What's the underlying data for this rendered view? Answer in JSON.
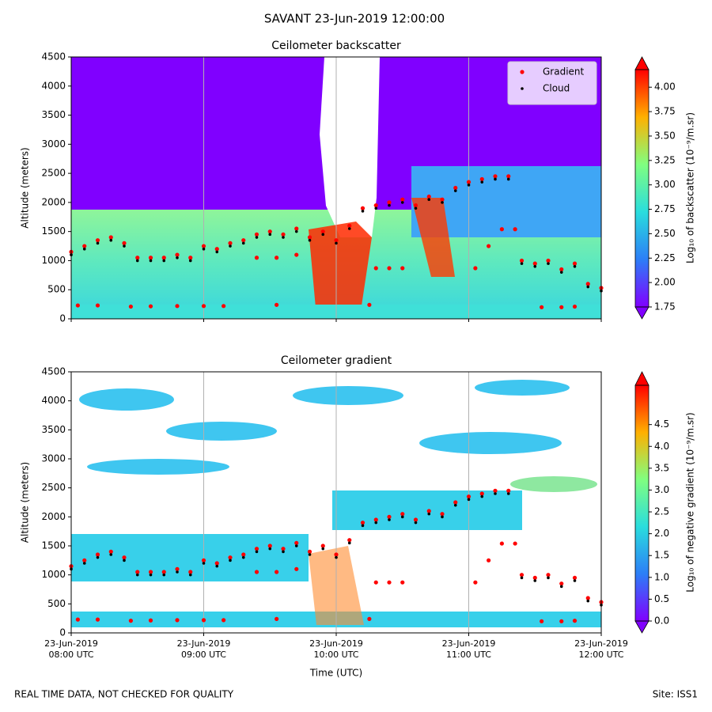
{
  "title": "SAVANT 23-Jun-2019 12:00:00",
  "footer_left": "REAL TIME DATA, NOT CHECKED FOR QUALITY",
  "footer_right": "Site: ISS1",
  "chart_data": [
    {
      "type": "scatter",
      "title": "Ceilometer backscatter",
      "ylabel": "Altitude (meters)",
      "xlim": [
        8,
        12
      ],
      "xticks": [
        8,
        9,
        10,
        11,
        12
      ],
      "ylim": [
        0,
        4500
      ],
      "yticks": [
        0,
        500,
        1000,
        1500,
        2000,
        2500,
        3000,
        3500,
        4000,
        4500
      ],
      "grid": "x",
      "legend": "upper right",
      "colorbar": {
        "label": "Log₁₀ of backscatter (10⁻⁹/m.sr)",
        "lim": [
          1.75,
          4.18
        ],
        "ticks": [
          1.75,
          {
            "value": 2,
            "label": "2.00"
          },
          2.25,
          {
            "value": 2.5,
            "label": "2.50"
          },
          2.75,
          {
            "value": 3,
            "label": "3.00"
          },
          3.25,
          {
            "value": 3.5,
            "label": "3.50"
          },
          3.75,
          {
            "value": 4,
            "label": "4.00"
          }
        ]
      },
      "series": [
        {
          "name": "Gradient",
          "color": "#ff0000",
          "x": [
            8.0,
            8.1,
            8.2,
            8.3,
            8.4,
            8.5,
            8.6,
            8.7,
            8.8,
            8.9,
            9.0,
            9.1,
            9.2,
            9.3,
            9.4,
            9.5,
            9.6,
            9.7,
            9.8,
            9.9,
            10.0,
            10.1,
            10.2,
            10.3,
            10.4,
            10.5,
            10.6,
            10.7,
            10.8,
            10.9,
            11.0,
            11.1,
            11.2,
            11.3,
            11.4,
            11.5,
            11.6,
            11.7,
            11.8,
            11.9,
            12.0,
            8.05,
            8.2,
            8.45,
            8.6,
            8.8,
            9.0,
            9.15,
            9.55,
            9.4,
            9.55,
            9.7,
            10.25,
            10.3,
            10.4,
            10.5,
            11.05,
            11.15,
            11.25,
            11.35,
            11.55,
            11.7,
            11.8
          ],
          "values": [
            1150,
            1250,
            1350,
            1400,
            1300,
            1050,
            1050,
            1050,
            1100,
            1050,
            1250,
            1200,
            1300,
            1350,
            1450,
            1500,
            1450,
            1550,
            1400,
            1500,
            1350,
            1600,
            1900,
            1950,
            2000,
            2050,
            1950,
            2100,
            2050,
            2250,
            2350,
            2400,
            2450,
            2450,
            1000,
            950,
            1000,
            850,
            950,
            600,
            530,
            230,
            230,
            210,
            215,
            220,
            220,
            220,
            240,
            1050,
            1050,
            1100,
            240,
            870,
            870,
            870,
            870,
            1250,
            1540,
            1540,
            200,
            200,
            210
          ]
        },
        {
          "name": "Cloud",
          "color": "#000000",
          "x": [
            8.0,
            8.1,
            8.2,
            8.3,
            8.4,
            8.5,
            8.6,
            8.7,
            8.8,
            8.9,
            9.0,
            9.1,
            9.2,
            9.3,
            9.4,
            9.5,
            9.6,
            9.7,
            9.8,
            9.9,
            10.0,
            10.1,
            10.2,
            10.3,
            10.4,
            10.5,
            10.6,
            10.7,
            10.8,
            10.9,
            11.0,
            11.1,
            11.2,
            11.3,
            11.4,
            11.5,
            11.6,
            11.7,
            11.8,
            11.9,
            12.0
          ],
          "values": [
            1100,
            1200,
            1300,
            1350,
            1250,
            1000,
            1000,
            1000,
            1050,
            1000,
            1200,
            1150,
            1250,
            1300,
            1400,
            1450,
            1400,
            1500,
            1350,
            1450,
            1300,
            1550,
            1850,
            1900,
            1950,
            2000,
            1900,
            2050,
            2000,
            2200,
            2300,
            2350,
            2400,
            2400,
            950,
            900,
            950,
            800,
            900,
            550,
            480
          ]
        }
      ]
    },
    {
      "type": "scatter",
      "title": "Ceilometer gradient",
      "ylabel": "Altitude (meters)",
      "xlabel": "Time (UTC)",
      "xlim": [
        8,
        12
      ],
      "xticks": [
        {
          "value": 8,
          "label": [
            "23-Jun-2019",
            "08:00 UTC"
          ]
        },
        {
          "value": 9,
          "label": [
            "23-Jun-2019",
            "09:00 UTC"
          ]
        },
        {
          "value": 10,
          "label": [
            "23-Jun-2019",
            "10:00 UTC"
          ]
        },
        {
          "value": 11,
          "label": [
            "23-Jun-2019",
            "11:00 UTC"
          ]
        },
        {
          "value": 12,
          "label": [
            "23-Jun-2019",
            "12:00 UTC"
          ]
        }
      ],
      "ylim": [
        0,
        4500
      ],
      "yticks": [
        0,
        500,
        1000,
        1500,
        2000,
        2500,
        3000,
        3500,
        4000,
        4500
      ],
      "grid": "x",
      "colorbar": {
        "label": "Log₁₀ of negative gradient (10⁻⁹/m.sr)",
        "lim": [
          0,
          5.4
        ],
        "ticks": [
          {
            "value": 0,
            "label": "0.0"
          },
          0.5,
          {
            "value": 1,
            "label": "1.0"
          },
          1.5,
          {
            "value": 2,
            "label": "2.0"
          },
          2.5,
          {
            "value": 3,
            "label": "3.0"
          },
          3.5,
          {
            "value": 4,
            "label": "4.0"
          },
          4.5
        ]
      },
      "series": [
        {
          "color": "#ff0000",
          "x": [
            8.0,
            8.1,
            8.2,
            8.3,
            8.4,
            8.5,
            8.6,
            8.7,
            8.8,
            8.9,
            9.0,
            9.1,
            9.2,
            9.3,
            9.4,
            9.5,
            9.6,
            9.7,
            9.8,
            9.9,
            10.0,
            10.1,
            10.2,
            10.3,
            10.4,
            10.5,
            10.6,
            10.7,
            10.8,
            10.9,
            11.0,
            11.1,
            11.2,
            11.3,
            11.4,
            11.5,
            11.6,
            11.7,
            11.8,
            11.9,
            12.0,
            8.05,
            8.2,
            8.45,
            8.6,
            8.8,
            9.0,
            9.15,
            9.55,
            9.4,
            9.55,
            9.7,
            10.25,
            10.3,
            10.4,
            10.5,
            11.05,
            11.15,
            11.25,
            11.35,
            11.55,
            11.7,
            11.8
          ],
          "values": [
            1150,
            1250,
            1350,
            1400,
            1300,
            1050,
            1050,
            1050,
            1100,
            1050,
            1250,
            1200,
            1300,
            1350,
            1450,
            1500,
            1450,
            1550,
            1400,
            1500,
            1350,
            1600,
            1900,
            1950,
            2000,
            2050,
            1950,
            2100,
            2050,
            2250,
            2350,
            2400,
            2450,
            2450,
            1000,
            950,
            1000,
            850,
            950,
            600,
            530,
            230,
            230,
            210,
            215,
            220,
            220,
            220,
            240,
            1050,
            1050,
            1100,
            240,
            870,
            870,
            870,
            870,
            1250,
            1540,
            1540,
            200,
            200,
            210
          ]
        },
        {
          "color": "#000000",
          "x": [
            8.0,
            8.1,
            8.2,
            8.3,
            8.4,
            8.5,
            8.6,
            8.7,
            8.8,
            8.9,
            9.0,
            9.1,
            9.2,
            9.3,
            9.4,
            9.5,
            9.6,
            9.7,
            9.8,
            9.9,
            10.0,
            10.1,
            10.2,
            10.3,
            10.4,
            10.5,
            10.6,
            10.7,
            10.8,
            10.9,
            11.0,
            11.1,
            11.2,
            11.3,
            11.4,
            11.5,
            11.6,
            11.7,
            11.8,
            11.9,
            12.0
          ],
          "values": [
            1100,
            1200,
            1300,
            1350,
            1250,
            1000,
            1000,
            1000,
            1050,
            1000,
            1200,
            1150,
            1250,
            1300,
            1400,
            1450,
            1400,
            1500,
            1350,
            1450,
            1300,
            1550,
            1850,
            1900,
            1950,
            2000,
            1900,
            2050,
            2000,
            2200,
            2300,
            2350,
            2400,
            2400,
            950,
            900,
            950,
            800,
            900,
            550,
            480
          ]
        }
      ]
    }
  ]
}
